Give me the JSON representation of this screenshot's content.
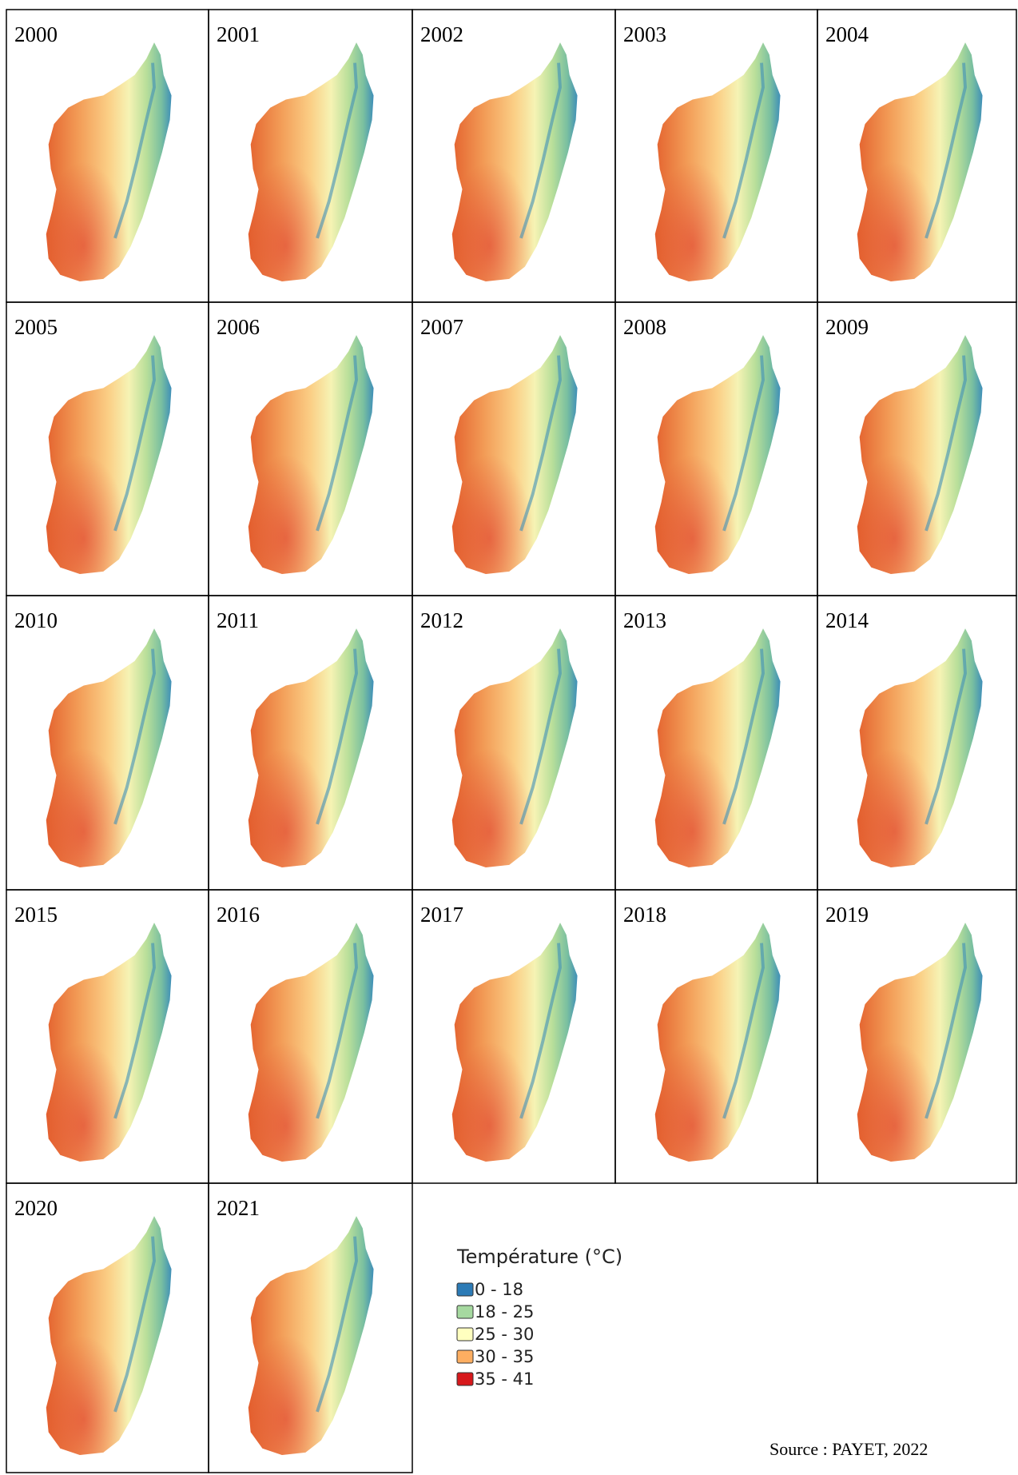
{
  "maps": [
    {
      "year": "2000"
    },
    {
      "year": "2001"
    },
    {
      "year": "2002"
    },
    {
      "year": "2003"
    },
    {
      "year": "2004"
    },
    {
      "year": "2005"
    },
    {
      "year": "2006"
    },
    {
      "year": "2007"
    },
    {
      "year": "2008"
    },
    {
      "year": "2009"
    },
    {
      "year": "2010"
    },
    {
      "year": "2011"
    },
    {
      "year": "2012"
    },
    {
      "year": "2013"
    },
    {
      "year": "2014"
    },
    {
      "year": "2015"
    },
    {
      "year": "2016"
    },
    {
      "year": "2017"
    },
    {
      "year": "2018"
    },
    {
      "year": "2019"
    },
    {
      "year": "2020"
    },
    {
      "year": "2021"
    }
  ],
  "legend": {
    "title": "Température (°C)",
    "items": [
      {
        "label": "0 - 18",
        "color": "#2c7bb6"
      },
      {
        "label": "18 - 25",
        "color": "#a6d9a0"
      },
      {
        "label": "25 - 30",
        "color": "#ffffbf"
      },
      {
        "label": "30 - 35",
        "color": "#fdae61"
      },
      {
        "label": "35 - 41",
        "color": "#d7191c"
      }
    ]
  },
  "source": "Source  : PAYET, 2022"
}
